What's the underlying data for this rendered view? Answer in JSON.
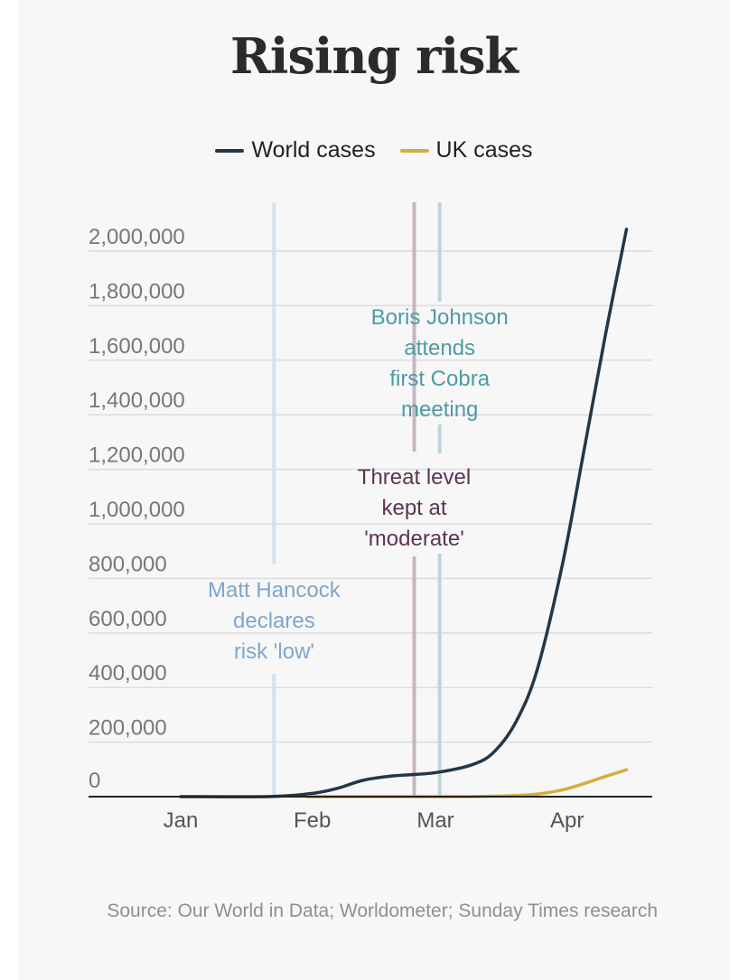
{
  "title": "Rising risk",
  "legend": [
    {
      "label": "World cases",
      "color": "#243746"
    },
    {
      "label": "UK cases",
      "color": "#d6ad3f"
    }
  ],
  "source": "Source: Our World in Data; Worldometer; Sunday Times research",
  "chart_data": {
    "type": "line",
    "title": "Rising risk",
    "xlabel": "",
    "ylabel": "",
    "x_ticks": [
      "Jan",
      "Feb",
      "Mar",
      "Apr"
    ],
    "y_ticks": [
      "0",
      "200,000",
      "400,000",
      "600,000",
      "800,000",
      "1,000,000",
      "1,200,000",
      "1,400,000",
      "1,600,000",
      "1,800,000",
      "2,000,000"
    ],
    "ylim": [
      0,
      2000000
    ],
    "grid": true,
    "legend_position": "top",
    "series": [
      {
        "name": "World cases",
        "color": "#243746",
        "points": [
          [
            "Jan 1",
            0
          ],
          [
            "Jan 22",
            580
          ],
          [
            "Feb 1",
            12000
          ],
          [
            "Feb 7",
            31000
          ],
          [
            "Feb 13",
            60000
          ],
          [
            "Feb 20",
            76000
          ],
          [
            "Mar 1",
            88000
          ],
          [
            "Mar 10",
            119000
          ],
          [
            "Mar 15",
            167000
          ],
          [
            "Mar 20",
            275000
          ],
          [
            "Mar 25",
            467000
          ],
          [
            "Mar 31",
            858000
          ],
          [
            "Apr 5",
            1270000
          ],
          [
            "Apr 10",
            1690000
          ],
          [
            "Apr 15",
            2080000
          ]
        ]
      },
      {
        "name": "UK cases",
        "color": "#d6ad3f",
        "points": [
          [
            "Jan 31",
            2
          ],
          [
            "Feb 29",
            23
          ],
          [
            "Mar 10",
            373
          ],
          [
            "Mar 20",
            3983
          ],
          [
            "Mar 25",
            9529
          ],
          [
            "Mar 31",
            25150
          ],
          [
            "Apr 5",
            47806
          ],
          [
            "Apr 10",
            73758
          ],
          [
            "Apr 15",
            98476
          ]
        ]
      }
    ],
    "annotations": [
      {
        "date": "Jan 23",
        "text": [
          "Matt Hancock",
          "declares",
          "risk 'low'"
        ],
        "text_color": "#7fa6cc",
        "line_color": "#d4e1ee"
      },
      {
        "date": "Feb 25",
        "text": [
          "Threat level",
          "kept at",
          "'moderate'"
        ],
        "text_color": "#5b3552",
        "line_color": "#c5b6c4"
      },
      {
        "date": "Mar 2",
        "text": [
          "Boris Johnson",
          "attends",
          "first Cobra",
          "meeting"
        ],
        "text_color": "#4e9aa5",
        "line_color": "#bcd6da"
      }
    ]
  }
}
